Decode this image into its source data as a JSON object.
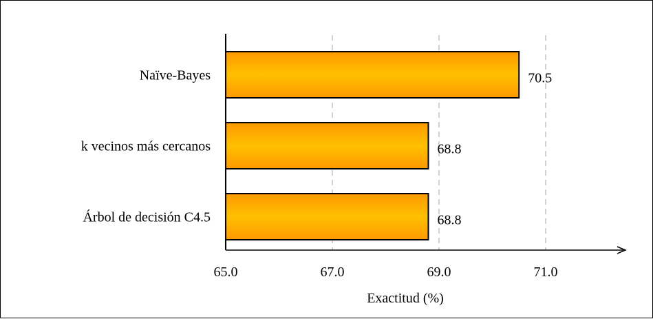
{
  "chart_data": {
    "type": "bar",
    "orientation": "horizontal",
    "categories": [
      "Naïve-Bayes",
      "k vecinos más cercanos",
      "Árbol de decisión C4.5"
    ],
    "values": [
      70.5,
      68.8,
      68.8
    ],
    "data_labels": [
      "70.5",
      "68.8",
      "68.8"
    ],
    "xlabel": "Exactitud (%)",
    "ylabel": "",
    "title": "",
    "xlim": [
      65.0,
      72.5
    ],
    "xticks": [
      65.0,
      67.0,
      69.0,
      71.0
    ],
    "xtick_labels": [
      "65.0",
      "67.0",
      "69.0",
      "71.0"
    ],
    "grid": "vertical dashed",
    "legend": "none",
    "colors": {
      "bar_edge": "#FF9900",
      "bar_center": "#FFC000",
      "grid": "#D0D0D0"
    }
  }
}
